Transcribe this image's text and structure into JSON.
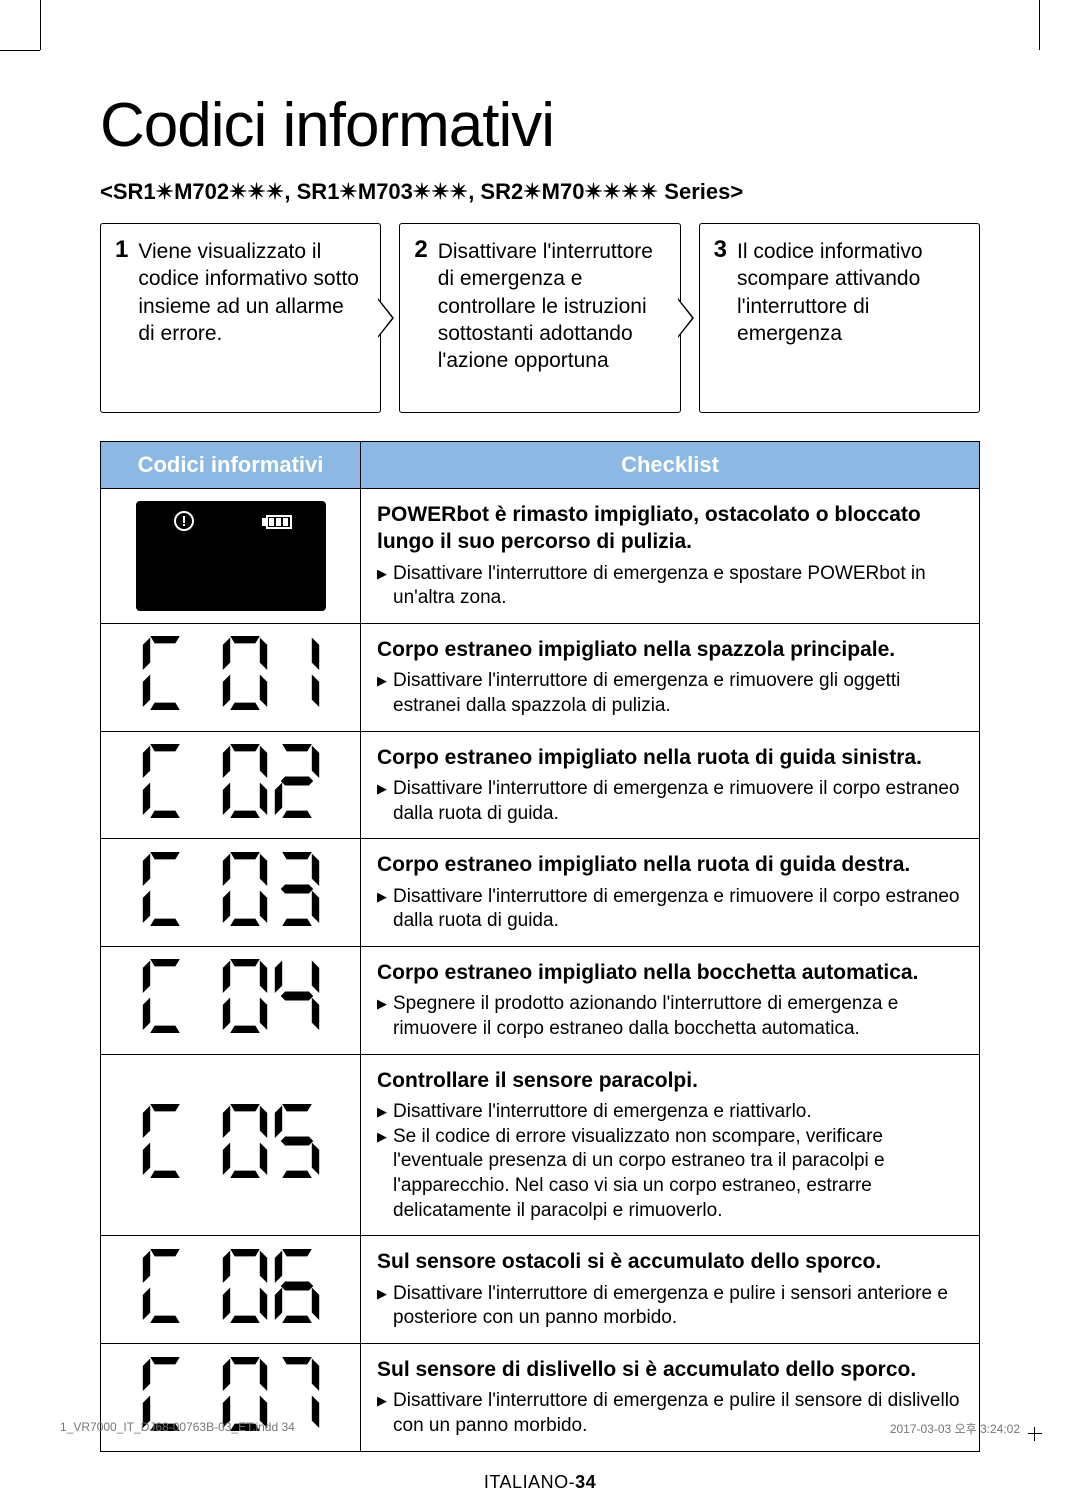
{
  "page": {
    "title": "Codici informativi",
    "subtitle": "<SR1✴M702✴✴✴, SR1✴M703✴✴✴, SR2✴M70✴✴✴✴ Series>",
    "footer_lang": "ITALIANO-",
    "footer_page": "34"
  },
  "colors": {
    "header_bg": "#8bb9e3",
    "header_fg": "#ffffff",
    "border": "#000000"
  },
  "steps": [
    {
      "n": "1",
      "text": "Viene visualizzato il codice informativo sotto insieme ad un allarme di errore."
    },
    {
      "n": "2",
      "text": "Disattivare l'interruttore di emergenza e controllare le istruzioni sottostanti adottando l'azione opportuna"
    },
    {
      "n": "3",
      "text": "Il codice informativo scompare attivando l'interruttore di emergenza"
    }
  ],
  "table": {
    "head_left": "Codici informativi",
    "head_right": "Checklist",
    "rows": [
      {
        "code_type": "panel",
        "title": "POWERbot è rimasto impigliato, ostacolato o bloccato lungo il suo percorso di pulizia.",
        "items": [
          "Disattivare l'interruttore di emergenza e spostare POWERbot in un'altra zona."
        ]
      },
      {
        "code": "C 01",
        "title": "Corpo estraneo impigliato nella spazzola principale.",
        "items": [
          "Disattivare l'interruttore di emergenza e rimuovere gli oggetti estranei dalla spazzola di pulizia."
        ]
      },
      {
        "code": "C 02",
        "title": "Corpo estraneo impigliato nella ruota di guida sinistra.",
        "items": [
          "Disattivare l'interruttore di emergenza e rimuovere il corpo estraneo dalla ruota di guida."
        ]
      },
      {
        "code": "C 03",
        "title": "Corpo estraneo impigliato nella ruota di guida destra.",
        "items": [
          "Disattivare l'interruttore di emergenza e rimuovere il corpo estraneo dalla ruota di guida."
        ]
      },
      {
        "code": "C 04",
        "title": "Corpo estraneo impigliato nella bocchetta automatica.",
        "items": [
          "Spegnere il prodotto azionando l'interruttore di emergenza e rimuovere il corpo estraneo dalla bocchetta automatica."
        ]
      },
      {
        "code": "C 05",
        "title": "Controllare il sensore paracolpi.",
        "items": [
          "Disattivare l'interruttore di emergenza e riattivarlo.",
          "Se il codice di errore visualizzato non scompare, verificare l'eventuale presenza di un corpo estraneo tra il paracolpi e l'apparecchio. Nel caso vi sia un corpo estraneo, estrarre delicatamente il paracolpi e rimuoverlo."
        ]
      },
      {
        "code": "C 06",
        "title": "Sul sensore ostacoli si è accumulato dello sporco.",
        "items": [
          "Disattivare l'interruttore di emergenza e pulire i sensori anteriore e posteriore con un panno morbido."
        ]
      },
      {
        "code": "C 07",
        "title": "Sul sensore di dislivello si è accumulato dello sporco.",
        "items": [
          "Disattivare l'interruttore di emergenza e pulire il sensore di dislivello con un panno morbido."
        ]
      }
    ]
  },
  "print": {
    "file": "1_VR7000_IT_DJ68-00763B-03_ET.indd   34",
    "stamp": "2017-03-03   오후 3:24:02"
  }
}
